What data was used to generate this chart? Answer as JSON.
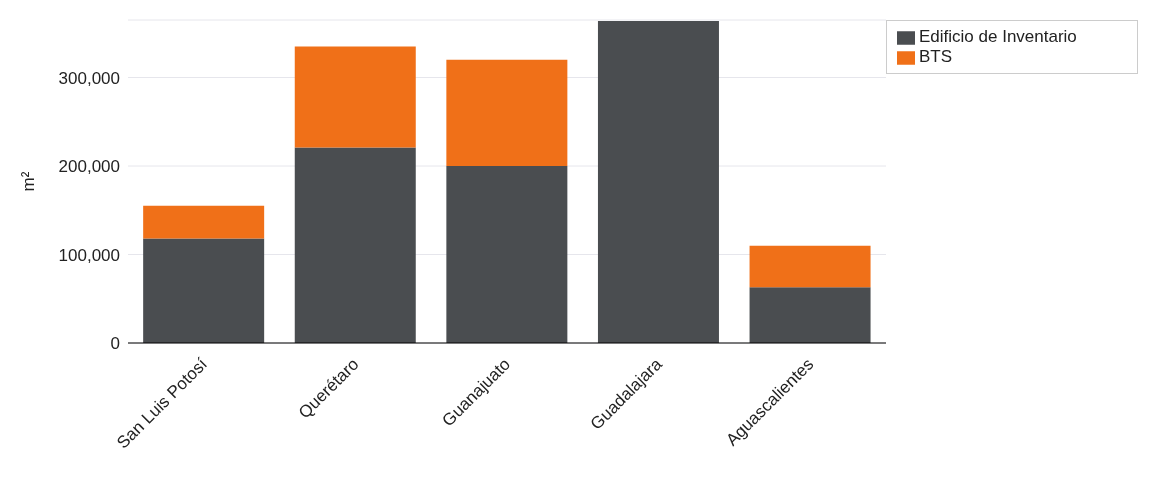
{
  "chart_data": {
    "type": "bar",
    "ylabel": "m²",
    "categories": [
      "San Luis Potosí",
      "Querétaro",
      "Guanajuato",
      "Guadalajara",
      "Aguascalientes"
    ],
    "series": [
      {
        "name": "Edificio de Inventario",
        "color": "#4a4d50",
        "values": [
          118000,
          221000,
          200000,
          364000,
          63000
        ]
      },
      {
        "name": "BTS",
        "color": "#f07018",
        "values": [
          37000,
          114000,
          120000,
          0,
          47000
        ]
      }
    ],
    "stacked": true,
    "ylim": [
      0,
      365000
    ],
    "yticks": [
      0,
      {
        "value": 100000,
        "label": "100,000"
      },
      {
        "value": 200000,
        "label": "200,000"
      },
      {
        "value": 300000,
        "label": "300,000"
      }
    ],
    "grid": "y",
    "legend": "top right"
  }
}
